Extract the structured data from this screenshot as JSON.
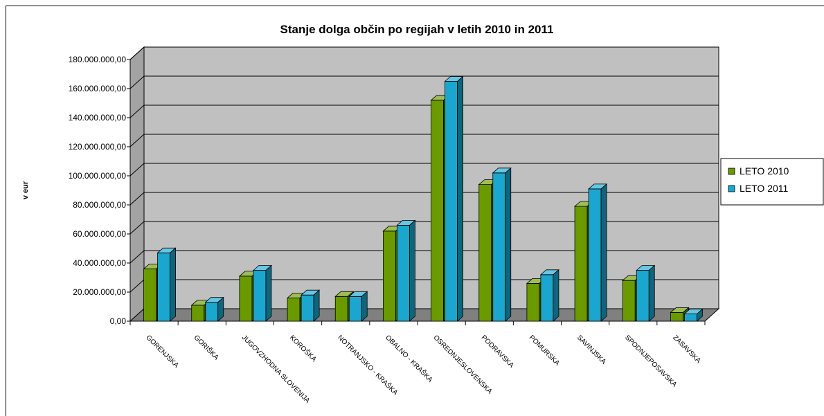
{
  "chart_data": {
    "type": "bar",
    "title": "Stanje dolga občin po regijah v letih 2010 in 2011",
    "xlabel": "",
    "ylabel": "v eur",
    "ylim": [
      0,
      180000000
    ],
    "y_ticks": [
      "0,00",
      "20.000.000,00",
      "40.000.000,00",
      "60.000.000,00",
      "80.000.000,00",
      "100.000.000,00",
      "120.000.000,00",
      "140.000.000,00",
      "160.000.000,00",
      "180.000.000,00"
    ],
    "categories": [
      "GORENJSKA",
      "GORIŠKA",
      "JUGOVZHODNA SLOVENIJA",
      "KOROŠKA",
      "NOTRANJSKO - KRAŠKA",
      "OBALNO - KRAŠKA",
      "OSREDNJESLOVENSKA",
      "PODRAVSKA",
      "POMURSKA",
      "SAVINJSKA",
      "SPODNJEPOSAVSKA",
      "ZASAVSKA"
    ],
    "series": [
      {
        "name": "LETO 2010",
        "color": "#6a9a00",
        "values": [
          36000000,
          11000000,
          31000000,
          16000000,
          17000000,
          62000000,
          152000000,
          94000000,
          26000000,
          79000000,
          28000000,
          6000000
        ]
      },
      {
        "name": "LETO 2011",
        "color": "#1aa6cf",
        "values": [
          47000000,
          13000000,
          35000000,
          18000000,
          17000000,
          66000000,
          165000000,
          102000000,
          32000000,
          91000000,
          35000000,
          5000000
        ]
      }
    ],
    "grid": true,
    "legend_position": "right",
    "wall_color": "#c0c0c0",
    "floor_color": "#808080"
  }
}
